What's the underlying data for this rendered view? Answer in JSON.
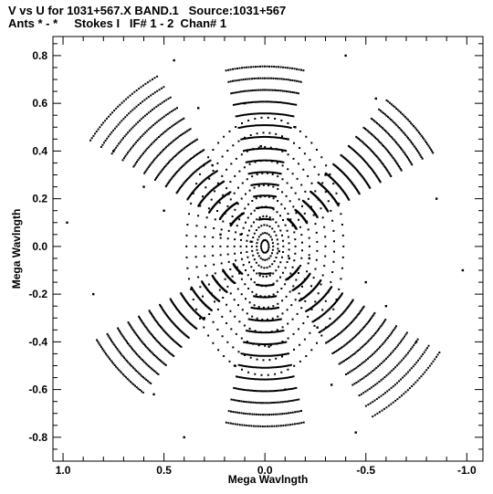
{
  "header": {
    "line1": "V vs U for 1031+567.X BAND.1   Source:1031+567",
    "line2": "Ants * - *     Stokes I   IF# 1 - 2  Chan# 1"
  },
  "chart_data": {
    "type": "scatter",
    "title": "V vs U for 1031+567.X BAND.1   Source:1031+567",
    "subtitle": "Ants * - *     Stokes I   IF# 1 - 2  Chan# 1",
    "xlabel": "Mega Wavlngth",
    "ylabel": "Mega Wavlngth",
    "xlim": [
      1.05,
      -1.08
    ],
    "ylim": [
      -0.9,
      0.88
    ],
    "x_reversed": true,
    "x_ticks": [
      "1.0",
      "0.5",
      "0.0",
      "-0.5",
      "-1.0"
    ],
    "y_ticks": [
      "0.8",
      "0.6",
      "0.4",
      "0.2",
      "0.0",
      "-0.2",
      "-0.4",
      "-0.6",
      "-0.8"
    ],
    "marker_color": "#000000",
    "series": [
      {
        "values": [
          [
            0.07,
            0.02
          ],
          [
            -0.07,
            -0.02
          ],
          [
            0.12,
            0.05
          ],
          [
            -0.12,
            -0.05
          ],
          [
            0.18,
            0.22
          ],
          [
            -0.18,
            -0.22
          ],
          [
            0.26,
            0.34
          ],
          [
            -0.26,
            -0.34
          ],
          [
            0.33,
            0.58
          ],
          [
            -0.33,
            -0.58
          ],
          [
            0.45,
            0.78
          ],
          [
            -0.45,
            -0.78
          ],
          [
            -0.4,
            0.8
          ],
          [
            0.4,
            -0.8
          ],
          [
            -0.55,
            0.62
          ],
          [
            0.55,
            -0.62
          ],
          [
            0.98,
            0.1
          ],
          [
            -0.98,
            -0.1
          ],
          [
            0.85,
            -0.2
          ],
          [
            -0.85,
            0.2
          ],
          [
            0.6,
            0.25
          ],
          [
            -0.6,
            -0.25
          ],
          [
            0.3,
            -0.3
          ],
          [
            -0.3,
            0.3
          ],
          [
            0.02,
            0.42
          ],
          [
            -0.02,
            -0.42
          ],
          [
            0.1,
            0.6
          ],
          [
            -0.1,
            -0.6
          ],
          [
            0.22,
            0.05
          ],
          [
            -0.22,
            -0.05
          ],
          [
            0.5,
            0.15
          ],
          [
            -0.5,
            -0.15
          ],
          [
            0.75,
            0.4
          ],
          [
            -0.75,
            -0.4
          ],
          [
            0.15,
            -0.5
          ],
          [
            -0.15,
            0.5
          ]
        ]
      }
    ]
  }
}
